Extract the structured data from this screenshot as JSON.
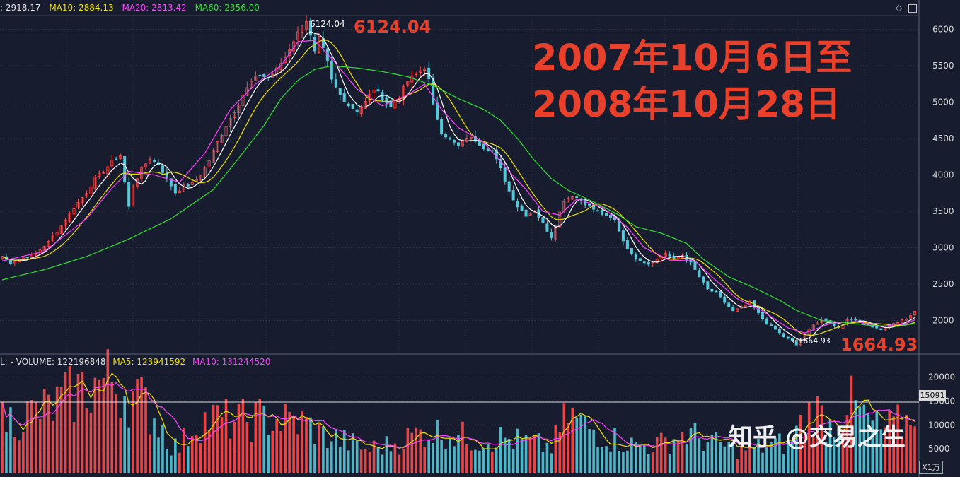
{
  "header": {
    "close_value": "2918.17",
    "ma10_text": "MA10: 2884.13",
    "ma20_text": "MA20: 2813.42",
    "ma60_text": "MA60: 2356.00",
    "close_label": ": 2918.17"
  },
  "volume_header": {
    "prefix": "L: - ",
    "volume_text": "VOLUME: 122196848",
    "ma5_text": "MA5: 123941592",
    "ma10_text": "MA10: 131244520"
  },
  "annotations": {
    "period_line1": "2007年10月6日至",
    "period_line2": "2008年10月28日",
    "high_big": "6124.04",
    "low_big": "1664.93",
    "high_small": "6124.04",
    "low_small": "←1664.93"
  },
  "volume_panel": {
    "current_value": "15091",
    "unit": "X1万"
  },
  "watermark": "知乎 @交易之生",
  "colors": {
    "background": "#171c2e",
    "up": "#ff4a4a",
    "down": "#54c8d8",
    "ma5": "#ffffff",
    "ma10": "#f0e000",
    "ma20": "#ff40ff",
    "ma60": "#30e030",
    "annotation": "#e8402a"
  },
  "chart_data": {
    "type": "candlestick",
    "price_axis": {
      "ticks": [
        2000,
        2500,
        3000,
        3500,
        4000,
        4500,
        5000,
        5500,
        6000
      ],
      "tick_labels": [
        "2000",
        "2500",
        "3000",
        "3500",
        "4000",
        "4500",
        "5000",
        "5500",
        "6000"
      ],
      "range": [
        1550,
        6190
      ]
    },
    "volume_axis": {
      "ticks": [
        5000,
        10000,
        15000,
        20000
      ],
      "tick_labels": [
        "5000",
        "10000",
        "15000",
        "20000"
      ],
      "range": [
        0,
        22000
      ],
      "unit": "X1万"
    },
    "price_path": [
      [
        0,
        2880
      ],
      [
        2,
        2800
      ],
      [
        5,
        2860
      ],
      [
        8,
        2920
      ],
      [
        11,
        3080
      ],
      [
        14,
        3300
      ],
      [
        17,
        3550
      ],
      [
        20,
        3760
      ],
      [
        22,
        3950
      ],
      [
        24,
        4050
      ],
      [
        26,
        4180
      ],
      [
        28,
        4270
      ],
      [
        29,
        3900
      ],
      [
        30,
        3560
      ],
      [
        31,
        3850
      ],
      [
        33,
        4080
      ],
      [
        35,
        4230
      ],
      [
        37,
        4150
      ],
      [
        39,
        3950
      ],
      [
        41,
        3760
      ],
      [
        43,
        3840
      ],
      [
        45,
        3880
      ],
      [
        47,
        4000
      ],
      [
        49,
        4200
      ],
      [
        51,
        4450
      ],
      [
        53,
        4680
      ],
      [
        55,
        4880
      ],
      [
        57,
        5100
      ],
      [
        59,
        5280
      ],
      [
        61,
        5380
      ],
      [
        63,
        5330
      ],
      [
        65,
        5450
      ],
      [
        67,
        5620
      ],
      [
        69,
        5850
      ],
      [
        71,
        6050
      ],
      [
        72,
        6124
      ],
      [
        73,
        5900
      ],
      [
        74,
        5680
      ],
      [
        75,
        5870
      ],
      [
        76,
        5720
      ],
      [
        77,
        5550
      ],
      [
        78,
        5300
      ],
      [
        80,
        5100
      ],
      [
        82,
        4960
      ],
      [
        84,
        4880
      ],
      [
        86,
        5000
      ],
      [
        88,
        5180
      ],
      [
        90,
        5070
      ],
      [
        92,
        4930
      ],
      [
        94,
        5080
      ],
      [
        96,
        5290
      ],
      [
        98,
        5390
      ],
      [
        100,
        5480
      ],
      [
        101,
        5300
      ],
      [
        102,
        4950
      ],
      [
        104,
        4600
      ],
      [
        106,
        4480
      ],
      [
        108,
        4400
      ],
      [
        110,
        4520
      ],
      [
        112,
        4480
      ],
      [
        114,
        4380
      ],
      [
        116,
        4330
      ],
      [
        118,
        4080
      ],
      [
        120,
        3780
      ],
      [
        122,
        3570
      ],
      [
        124,
        3450
      ],
      [
        126,
        3520
      ],
      [
        128,
        3330
      ],
      [
        130,
        3150
      ],
      [
        131,
        3320
      ],
      [
        133,
        3650
      ],
      [
        135,
        3720
      ],
      [
        137,
        3660
      ],
      [
        139,
        3560
      ],
      [
        141,
        3500
      ],
      [
        143,
        3430
      ],
      [
        145,
        3380
      ],
      [
        147,
        3100
      ],
      [
        149,
        2900
      ],
      [
        151,
        2830
      ],
      [
        153,
        2780
      ],
      [
        155,
        2840
      ],
      [
        157,
        2930
      ],
      [
        159,
        2840
      ],
      [
        161,
        2900
      ],
      [
        163,
        2790
      ],
      [
        165,
        2600
      ],
      [
        167,
        2430
      ],
      [
        169,
        2380
      ],
      [
        171,
        2250
      ],
      [
        173,
        2130
      ],
      [
        175,
        2180
      ],
      [
        177,
        2250
      ],
      [
        179,
        2100
      ],
      [
        181,
        1960
      ],
      [
        183,
        1880
      ],
      [
        185,
        1780
      ],
      [
        187,
        1720
      ],
      [
        188,
        1665
      ],
      [
        190,
        1800
      ],
      [
        192,
        1950
      ],
      [
        194,
        2020
      ],
      [
        196,
        1960
      ],
      [
        198,
        1900
      ],
      [
        200,
        2020
      ],
      [
        202,
        2010
      ],
      [
        204,
        1960
      ],
      [
        206,
        1920
      ],
      [
        208,
        1880
      ],
      [
        210,
        1930
      ],
      [
        212,
        1980
      ],
      [
        214,
        2020
      ],
      [
        216,
        2120
      ]
    ],
    "ma60_path": [
      [
        0,
        2560
      ],
      [
        10,
        2700
      ],
      [
        20,
        2880
      ],
      [
        30,
        3120
      ],
      [
        40,
        3400
      ],
      [
        50,
        3800
      ],
      [
        56,
        4230
      ],
      [
        62,
        4680
      ],
      [
        66,
        5050
      ],
      [
        70,
        5300
      ],
      [
        74,
        5450
      ],
      [
        78,
        5500
      ],
      [
        84,
        5470
      ],
      [
        90,
        5420
      ],
      [
        96,
        5350
      ],
      [
        102,
        5230
      ],
      [
        108,
        5050
      ],
      [
        114,
        4900
      ],
      [
        118,
        4750
      ],
      [
        122,
        4500
      ],
      [
        126,
        4200
      ],
      [
        130,
        3950
      ],
      [
        134,
        3790
      ],
      [
        140,
        3630
      ],
      [
        146,
        3450
      ],
      [
        150,
        3290
      ],
      [
        156,
        3200
      ],
      [
        162,
        3060
      ],
      [
        166,
        2840
      ],
      [
        172,
        2600
      ],
      [
        178,
        2450
      ],
      [
        184,
        2280
      ],
      [
        188,
        2140
      ],
      [
        194,
        2000
      ],
      [
        200,
        1970
      ],
      [
        206,
        1930
      ],
      [
        212,
        1920
      ],
      [
        216,
        1960
      ]
    ],
    "ma20_path": [
      [
        0,
        2820
      ],
      [
        10,
        2950
      ],
      [
        20,
        3400
      ],
      [
        26,
        3820
      ],
      [
        30,
        4050
      ],
      [
        36,
        4000
      ],
      [
        42,
        3900
      ],
      [
        48,
        4300
      ],
      [
        54,
        4900
      ],
      [
        60,
        5250
      ],
      [
        66,
        5500
      ],
      [
        70,
        5830
      ],
      [
        74,
        5850
      ],
      [
        78,
        5600
      ],
      [
        84,
        5180
      ],
      [
        90,
        4950
      ],
      [
        96,
        5100
      ],
      [
        100,
        5250
      ],
      [
        104,
        4900
      ],
      [
        108,
        4650
      ],
      [
        114,
        4450
      ],
      [
        120,
        4050
      ],
      [
        124,
        3800
      ],
      [
        128,
        3500
      ],
      [
        132,
        3450
      ],
      [
        136,
        3670
      ],
      [
        142,
        3560
      ],
      [
        148,
        3280
      ],
      [
        152,
        3000
      ],
      [
        158,
        2830
      ],
      [
        164,
        2820
      ],
      [
        168,
        2600
      ],
      [
        174,
        2300
      ],
      [
        180,
        2130
      ],
      [
        186,
        1900
      ],
      [
        190,
        1830
      ],
      [
        196,
        1960
      ],
      [
        202,
        1990
      ],
      [
        208,
        1920
      ],
      [
        214,
        1960
      ],
      [
        216,
        2010
      ]
    ],
    "volume_path": [
      [
        0,
        11000
      ],
      [
        6,
        12500
      ],
      [
        12,
        14000
      ],
      [
        18,
        17500
      ],
      [
        22,
        19000
      ],
      [
        26,
        20000
      ],
      [
        30,
        17000
      ],
      [
        34,
        14500
      ],
      [
        38,
        9500
      ],
      [
        40,
        6000
      ],
      [
        42,
        5500
      ],
      [
        46,
        11000
      ],
      [
        50,
        11500
      ],
      [
        56,
        11000
      ],
      [
        62,
        11800
      ],
      [
        68,
        11000
      ],
      [
        72,
        10500
      ],
      [
        76,
        8000
      ],
      [
        82,
        6500
      ],
      [
        86,
        5000
      ],
      [
        92,
        6000
      ],
      [
        100,
        9000
      ],
      [
        106,
        8500
      ],
      [
        112,
        7000
      ],
      [
        118,
        7500
      ],
      [
        124,
        6500
      ],
      [
        130,
        5500
      ],
      [
        134,
        12500
      ],
      [
        138,
        10000
      ],
      [
        144,
        7500
      ],
      [
        150,
        5800
      ],
      [
        156,
        6200
      ],
      [
        162,
        8500
      ],
      [
        168,
        6500
      ],
      [
        174,
        5000
      ],
      [
        180,
        5500
      ],
      [
        186,
        6500
      ],
      [
        192,
        14000
      ],
      [
        196,
        10000
      ],
      [
        200,
        15500
      ],
      [
        204,
        12000
      ],
      [
        208,
        9000
      ],
      [
        214,
        11000
      ],
      [
        216,
        15091
      ]
    ],
    "title": "",
    "xlabel": "",
    "ylabel": "",
    "grid": true
  }
}
